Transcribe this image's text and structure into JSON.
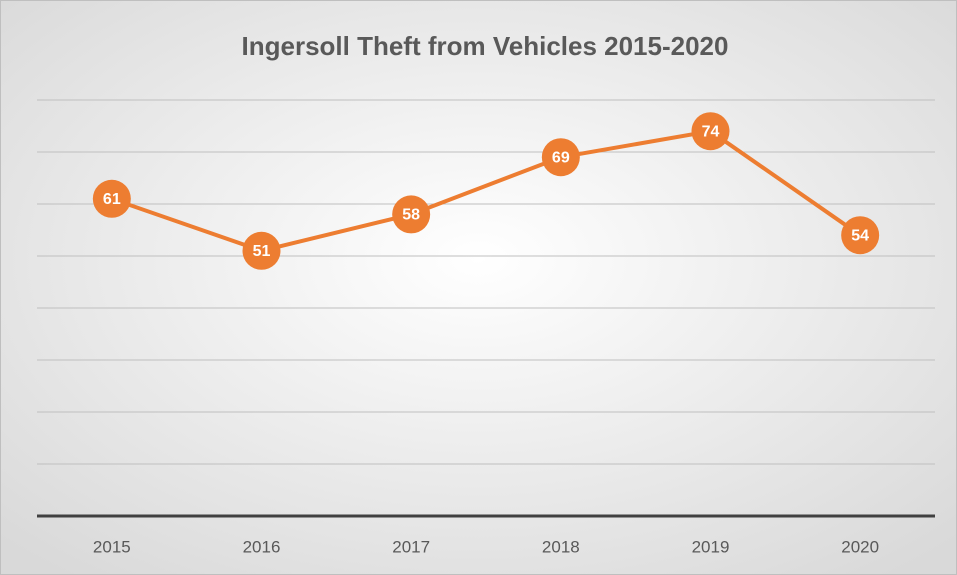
{
  "chart_data": {
    "type": "line",
    "title": "Ingersoll Theft from Vehicles 2015-2020",
    "categories": [
      "2015",
      "2016",
      "2017",
      "2018",
      "2019",
      "2020"
    ],
    "values": [
      61,
      51,
      58,
      69,
      74,
      54
    ],
    "color": "#ED7D31",
    "ylim": [
      0,
      80
    ],
    "yticks": [
      0,
      10,
      20,
      30,
      40,
      50,
      60,
      70,
      80
    ],
    "grid": true
  }
}
